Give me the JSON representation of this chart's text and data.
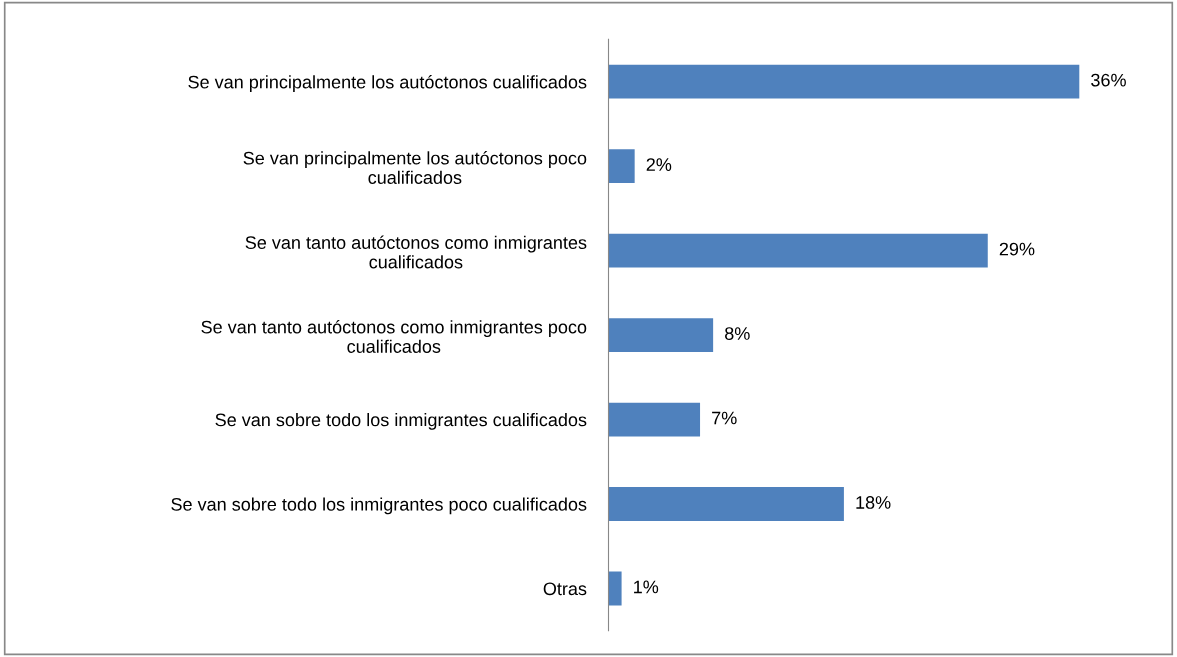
{
  "chart_data": {
    "type": "bar",
    "orientation": "horizontal",
    "categories": [
      "Se van principalmente los autóctonos cualificados",
      "Se van principalmente los autóctonos poco cualificados",
      "Se van tanto autóctonos como inmigrantes cualificados",
      "Se van tanto autóctonos como inmigrantes poco cualificados",
      "Se van sobre todo los inmigrantes cualificados",
      "Se van sobre todo los inmigrantes poco cualificados",
      "Otras"
    ],
    "values": [
      36,
      2,
      29,
      8,
      7,
      18,
      1
    ],
    "value_labels": [
      "36%",
      "2%",
      "29%",
      "8%",
      "7%",
      "18%",
      "1%"
    ],
    "color": "#4f81bd",
    "grid": false,
    "legend": false,
    "tick_labels": "y"
  }
}
